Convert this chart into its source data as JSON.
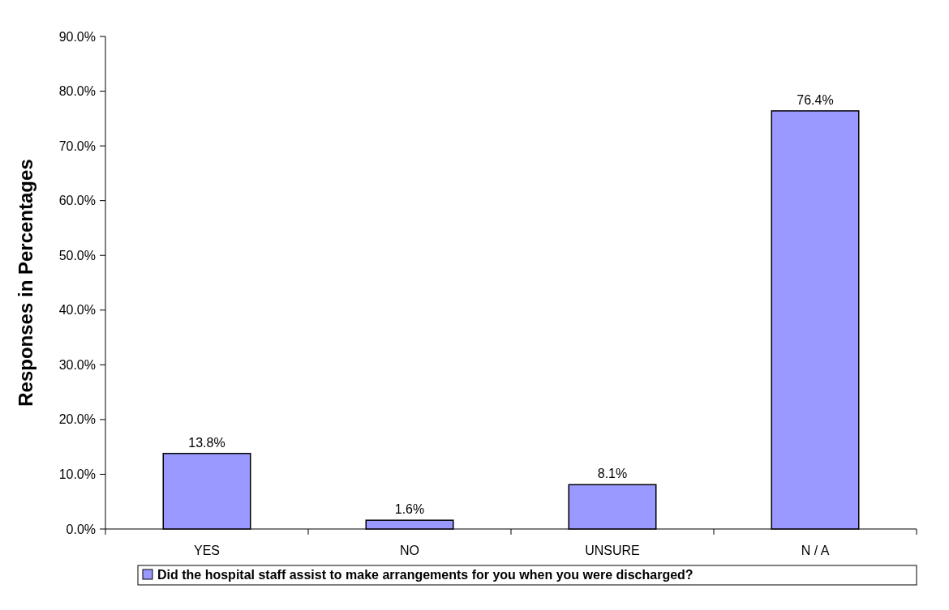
{
  "chart_data": {
    "type": "bar",
    "ylabel": "Responses in Percentages",
    "categories": [
      "YES",
      "NO",
      "UNSURE",
      "N / A"
    ],
    "series": [
      {
        "name": "Did the hospital staff assist to make arrangements for you when you were discharged?",
        "color": "#9999ff",
        "values": [
          13.8,
          1.6,
          8.1,
          76.4
        ],
        "value_labels": [
          "13.8%",
          "1.6%",
          "8.1%",
          "76.4%"
        ]
      }
    ],
    "ylim": [
      0,
      90
    ],
    "yticks": [
      {
        "value": 0,
        "label": "0.0%"
      },
      {
        "value": 10,
        "label": "10.0%"
      },
      {
        "value": 20,
        "label": "20.0%"
      },
      {
        "value": 30,
        "label": "30.0%"
      },
      {
        "value": 40,
        "label": "40.0%"
      },
      {
        "value": 50,
        "label": "50.0%"
      },
      {
        "value": 60,
        "label": "60.0%"
      },
      {
        "value": 70,
        "label": "70.0%"
      },
      {
        "value": 80,
        "label": "80.0%"
      },
      {
        "value": 90,
        "label": "90.0%"
      }
    ],
    "grid": false,
    "legend": "bottom"
  }
}
